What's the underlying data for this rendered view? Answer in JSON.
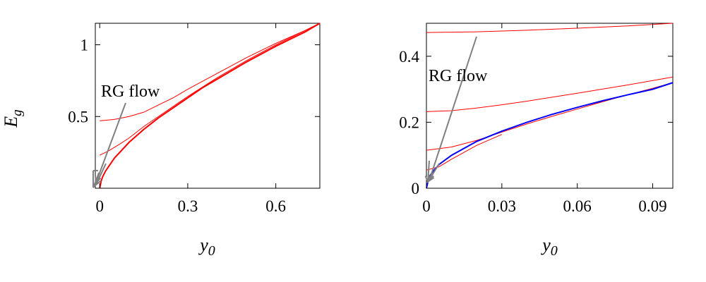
{
  "chart_data": [
    {
      "type": "line",
      "ylabel_main": "E",
      "ylabel_sub": "g",
      "xlabel": "y",
      "xlabel_sub": "0",
      "xlim": [
        -0.015,
        0.75
      ],
      "ylim": [
        0,
        1.15
      ],
      "xticks": [
        0,
        0.3,
        0.6
      ],
      "xtick_labels": [
        "0",
        "0.3",
        "0.6"
      ],
      "yticks": [
        0.5,
        1
      ],
      "ytick_labels": [
        "0.5",
        "1"
      ],
      "annotation": "RG flow",
      "series": [
        {
          "color": "#ff0000",
          "width": 1,
          "points": [
            [
              0,
              0.47
            ],
            [
              0.05,
              0.48
            ],
            [
              0.1,
              0.5
            ],
            [
              0.15,
              0.53
            ],
            [
              0.2,
              0.58
            ],
            [
              0.25,
              0.63
            ],
            [
              0.3,
              0.69
            ],
            [
              0.4,
              0.8
            ],
            [
              0.5,
              0.91
            ],
            [
              0.6,
              1.01
            ],
            [
              0.7,
              1.1
            ],
            [
              0.75,
              1.15
            ]
          ]
        },
        {
          "color": "#ff0000",
          "width": 1,
          "points": [
            [
              0,
              0.23
            ],
            [
              0.03,
              0.26
            ],
            [
              0.07,
              0.31
            ],
            [
              0.1,
              0.35
            ],
            [
              0.15,
              0.43
            ],
            [
              0.2,
              0.5
            ],
            [
              0.25,
              0.57
            ],
            [
              0.3,
              0.64
            ],
            [
              0.4,
              0.77
            ],
            [
              0.5,
              0.89
            ],
            [
              0.6,
              1.0
            ],
            [
              0.7,
              1.1
            ],
            [
              0.75,
              1.15
            ]
          ]
        },
        {
          "color": "#ff0000",
          "width": 2,
          "points": [
            [
              0,
              0
            ],
            [
              0.005,
              0.05
            ],
            [
              0.01,
              0.08
            ],
            [
              0.02,
              0.12
            ],
            [
              0.05,
              0.21
            ],
            [
              0.1,
              0.32
            ],
            [
              0.15,
              0.41
            ],
            [
              0.2,
              0.49
            ],
            [
              0.25,
              0.56
            ],
            [
              0.3,
              0.63
            ],
            [
              0.35,
              0.7
            ],
            [
              0.4,
              0.76
            ],
            [
              0.5,
              0.88
            ],
            [
              0.6,
              0.99
            ],
            [
              0.7,
              1.09
            ],
            [
              0.75,
              1.15
            ]
          ]
        }
      ]
    },
    {
      "type": "line",
      "xlabel": "y",
      "xlabel_sub": "0",
      "xlim": [
        0,
        0.098
      ],
      "ylim": [
        0,
        0.5
      ],
      "xticks": [
        0,
        0.03,
        0.06,
        0.09
      ],
      "xtick_labels": [
        "0",
        "0.03",
        "0.06",
        "0.09"
      ],
      "yticks": [
        0,
        0.2,
        0.4
      ],
      "ytick_labels": [
        "0",
        "0.2",
        "0.4"
      ],
      "annotation": "RG flow",
      "series": [
        {
          "color": "#ff0000",
          "width": 1,
          "points": [
            [
              0,
              0.472
            ],
            [
              0.02,
              0.474
            ],
            [
              0.04,
              0.479
            ],
            [
              0.06,
              0.485
            ],
            [
              0.08,
              0.492
            ],
            [
              0.098,
              0.5
            ]
          ]
        },
        {
          "color": "#ff0000",
          "width": 1,
          "points": [
            [
              0,
              0.232
            ],
            [
              0.01,
              0.235
            ],
            [
              0.02,
              0.243
            ],
            [
              0.03,
              0.253
            ],
            [
              0.04,
              0.264
            ],
            [
              0.06,
              0.288
            ],
            [
              0.08,
              0.313
            ],
            [
              0.098,
              0.337
            ]
          ]
        },
        {
          "color": "#ff0000",
          "width": 1,
          "points": [
            [
              0,
              0.115
            ],
            [
              0.01,
              0.125
            ],
            [
              0.02,
              0.145
            ],
            [
              0.03,
              0.17
            ],
            [
              0.04,
              0.195
            ],
            [
              0.05,
              0.218
            ],
            [
              0.06,
              0.24
            ],
            [
              0.07,
              0.262
            ],
            [
              0.08,
              0.283
            ],
            [
              0.09,
              0.303
            ],
            [
              0.098,
              0.32
            ]
          ]
        },
        {
          "color": "#ff0000",
          "width": 1,
          "points": [
            [
              0,
              0.055
            ],
            [
              0.005,
              0.065
            ],
            [
              0.01,
              0.088
            ],
            [
              0.02,
              0.13
            ],
            [
              0.03,
              0.163
            ]
          ]
        },
        {
          "color": "#0000ff",
          "width": 2,
          "points": [
            [
              0,
              0
            ],
            [
              0.001,
              0.032
            ],
            [
              0.002,
              0.045
            ],
            [
              0.005,
              0.072
            ],
            [
              0.01,
              0.1
            ],
            [
              0.02,
              0.142
            ],
            [
              0.03,
              0.173
            ],
            [
              0.04,
              0.2
            ],
            [
              0.05,
              0.224
            ],
            [
              0.06,
              0.245
            ],
            [
              0.07,
              0.265
            ],
            [
              0.08,
              0.283
            ],
            [
              0.09,
              0.3
            ],
            [
              0.098,
              0.32
            ]
          ]
        }
      ]
    }
  ]
}
